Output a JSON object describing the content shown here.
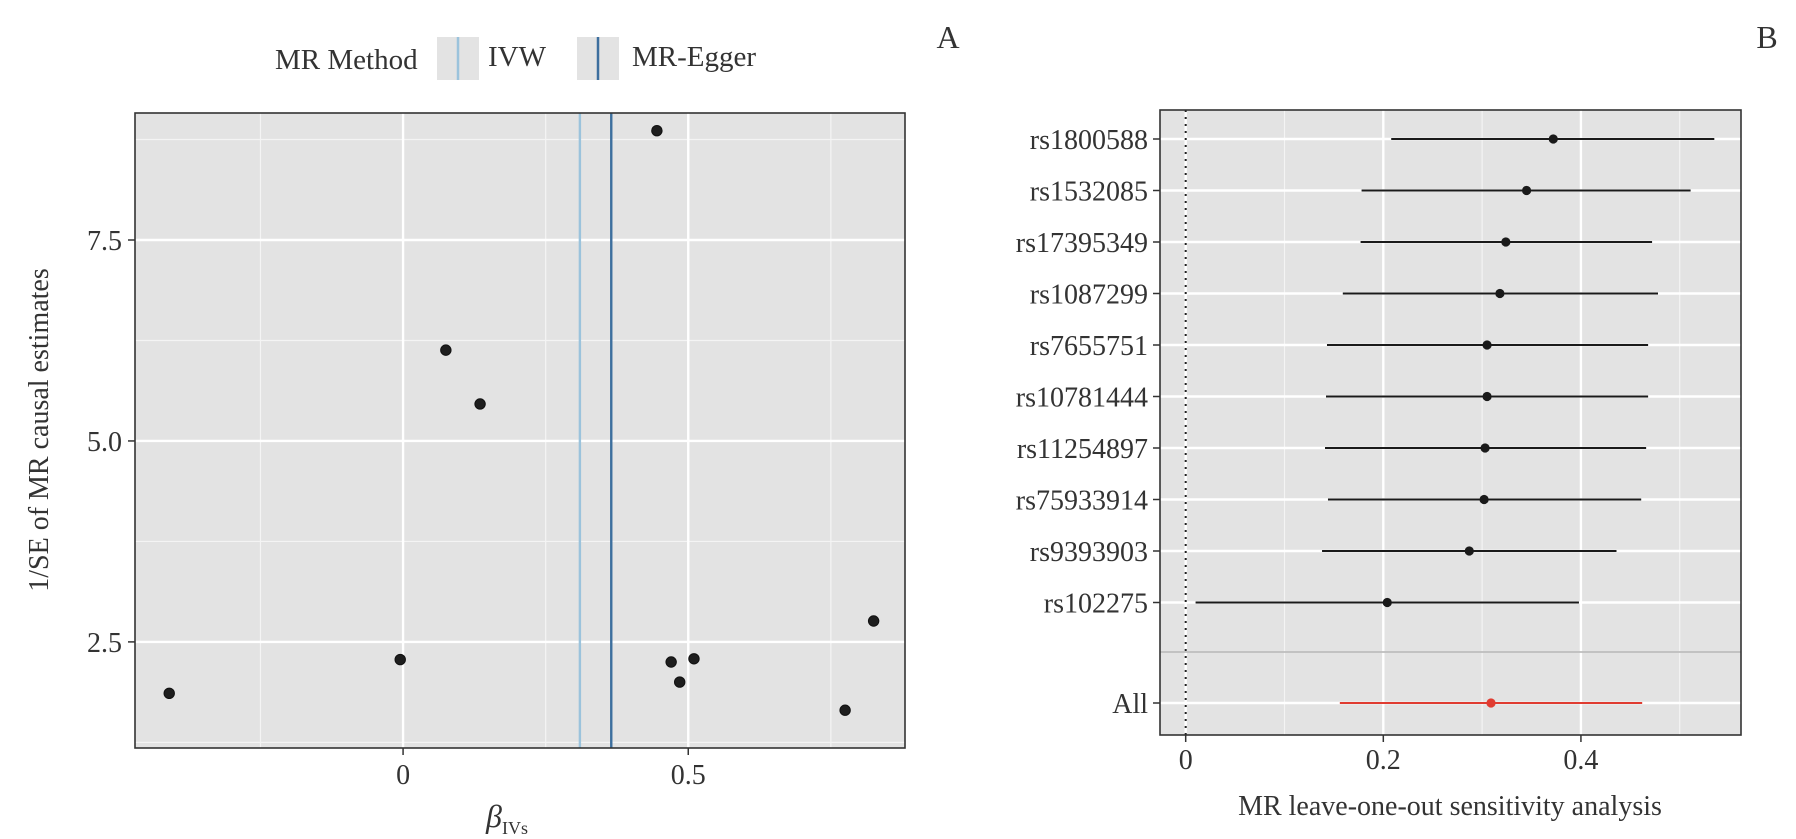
{
  "chart_data": [
    {
      "panel_label": "A",
      "type": "scatter",
      "title": "",
      "xlabel_base": "β",
      "xlabel_sub": "IVs",
      "ylabel": "1/SE of MR causal estimates",
      "xlim": [
        -0.47,
        0.88
      ],
      "ylim": [
        1.18,
        9.08
      ],
      "xticks": [
        0,
        0.5
      ],
      "xtick_labels": [
        "0",
        "0.5"
      ],
      "yticks": [
        2.5,
        5.0,
        7.5
      ],
      "ytick_labels": [
        "2.5",
        "5.0",
        "7.5"
      ],
      "x_minor_grid": [
        -0.25,
        0.25,
        0.75
      ],
      "y_minor_grid": [
        1.25,
        3.75,
        6.25,
        8.75
      ],
      "points": [
        {
          "x": -0.41,
          "y": 1.86
        },
        {
          "x": -0.005,
          "y": 2.28
        },
        {
          "x": 0.075,
          "y": 6.13
        },
        {
          "x": 0.135,
          "y": 5.46
        },
        {
          "x": 0.445,
          "y": 8.86
        },
        {
          "x": 0.47,
          "y": 2.25
        },
        {
          "x": 0.485,
          "y": 2.0
        },
        {
          "x": 0.51,
          "y": 2.29
        },
        {
          "x": 0.775,
          "y": 1.65
        },
        {
          "x": 0.825,
          "y": 2.76
        }
      ],
      "lines": [
        {
          "method": "IVW",
          "x": 0.31,
          "color": "#9bc3dc"
        },
        {
          "method": "MR-Egger",
          "x": 0.365,
          "color": "#3d6f9e"
        }
      ],
      "legend": {
        "title": "MR Method",
        "position": "top",
        "entries": [
          {
            "label": "IVW",
            "color": "#9bc3dc"
          },
          {
            "label": "MR-Egger",
            "color": "#3d6f9e"
          }
        ]
      }
    },
    {
      "panel_label": "B",
      "type": "forest",
      "xlabel": "MR leave-one-out sensitivity analysis",
      "xlim": [
        -0.026,
        0.562
      ],
      "xticks": [
        0,
        0.2,
        0.4
      ],
      "xtick_labels": [
        "0",
        "0.2",
        "0.4"
      ],
      "x_minor_grid": [
        0.1,
        0.3,
        0.5
      ],
      "reference_line": 0,
      "rows": [
        {
          "label": "rs1800588",
          "est": 0.372,
          "lo": 0.208,
          "hi": 0.535,
          "color": "#1a1a1a"
        },
        {
          "label": "rs1532085",
          "est": 0.345,
          "lo": 0.178,
          "hi": 0.511,
          "color": "#1a1a1a"
        },
        {
          "label": "rs17395349",
          "est": 0.324,
          "lo": 0.177,
          "hi": 0.472,
          "color": "#1a1a1a"
        },
        {
          "label": "rs1087299",
          "est": 0.318,
          "lo": 0.159,
          "hi": 0.478,
          "color": "#1a1a1a"
        },
        {
          "label": "rs7655751",
          "est": 0.305,
          "lo": 0.143,
          "hi": 0.468,
          "color": "#1a1a1a"
        },
        {
          "label": "rs10781444",
          "est": 0.305,
          "lo": 0.142,
          "hi": 0.468,
          "color": "#1a1a1a"
        },
        {
          "label": "rs11254897",
          "est": 0.303,
          "lo": 0.141,
          "hi": 0.466,
          "color": "#1a1a1a"
        },
        {
          "label": "rs75933914",
          "est": 0.302,
          "lo": 0.144,
          "hi": 0.461,
          "color": "#1a1a1a"
        },
        {
          "label": "rs9393903",
          "est": 0.287,
          "lo": 0.138,
          "hi": 0.436,
          "color": "#1a1a1a"
        },
        {
          "label": "rs102275",
          "est": 0.204,
          "lo": 0.01,
          "hi": 0.398,
          "color": "#1a1a1a"
        },
        {
          "label": "All",
          "est": 0.309,
          "lo": 0.156,
          "hi": 0.462,
          "color": "#e03c31"
        }
      ]
    }
  ]
}
